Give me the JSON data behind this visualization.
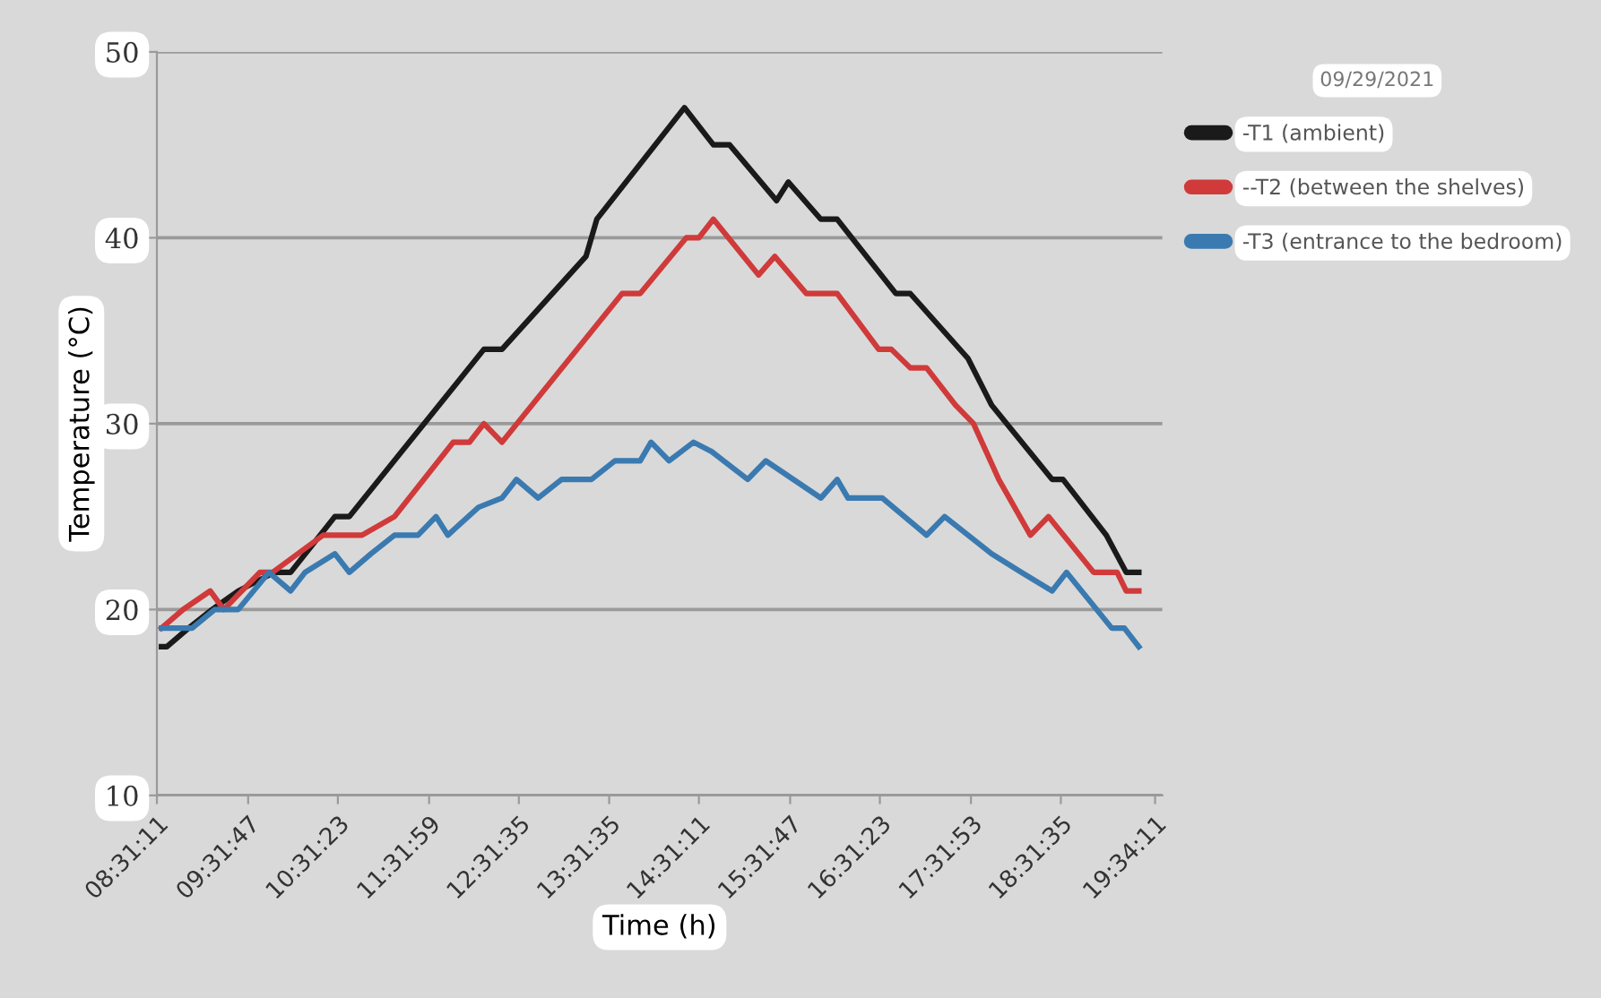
{
  "chart_data": {
    "type": "line",
    "xlabel": "Time (h)",
    "ylabel": "Temperature (°C)",
    "legend_title": "09/29/2021",
    "xlim": [
      8.5197,
      19.65
    ],
    "ylim": [
      10,
      50
    ],
    "yticks": [
      10,
      20,
      30,
      40,
      50
    ],
    "xticks": [
      {
        "value": 8.5197,
        "label": "08:31:11"
      },
      {
        "value": 9.5297,
        "label": "09:31:47"
      },
      {
        "value": 10.5231,
        "label": "10:31:23"
      },
      {
        "value": 11.5331,
        "label": "11:31:59"
      },
      {
        "value": 12.5264,
        "label": "12:31:35"
      },
      {
        "value": 13.5264,
        "label": "13:31:35"
      },
      {
        "value": 14.5197,
        "label": "14:31:11"
      },
      {
        "value": 15.5297,
        "label": "15:31:47"
      },
      {
        "value": 16.5231,
        "label": "16:31:23"
      },
      {
        "value": 17.5314,
        "label": "17:31:53"
      },
      {
        "value": 18.5264,
        "label": "18:31:35"
      },
      {
        "value": 19.5697,
        "label": "19:34:11"
      }
    ],
    "grid": "y",
    "legend": "right",
    "marker": "none",
    "line_style": "solid",
    "series": [
      {
        "name": "-T1 (ambient)",
        "color": "#1a1a1a",
        "x": [
          8.57,
          8.63,
          8.87,
          9.13,
          9.42,
          9.82,
          10.0,
          10.49,
          10.65,
          12.14,
          12.34,
          13.27,
          13.39,
          14.36,
          14.68,
          14.86,
          15.38,
          15.51,
          15.87,
          16.05,
          16.7,
          16.86,
          17.5,
          17.76,
          18.43,
          18.55,
          19.03,
          19.25,
          19.39
        ],
        "values": [
          18,
          18,
          19,
          20,
          21,
          22,
          22,
          25,
          25,
          34,
          34,
          39,
          41,
          47,
          45,
          45,
          42,
          43,
          41,
          41,
          37,
          37,
          33.5,
          31,
          27,
          27,
          24,
          22,
          22
        ]
      },
      {
        "name": "--T2 (between the shelves)",
        "color": "#d03a3a",
        "x": [
          8.57,
          8.81,
          9.11,
          9.26,
          9.66,
          9.8,
          10.36,
          10.79,
          11.15,
          11.8,
          11.98,
          12.14,
          12.34,
          13.67,
          13.87,
          14.38,
          14.52,
          14.68,
          15.18,
          15.36,
          15.71,
          16.05,
          16.51,
          16.65,
          16.86,
          17.04,
          17.36,
          17.56,
          17.84,
          18.19,
          18.39,
          18.89,
          19.15,
          19.25,
          19.39
        ],
        "values": [
          19,
          20,
          21,
          20,
          22,
          22,
          24,
          24,
          25,
          29,
          29,
          30,
          29,
          37,
          37,
          40,
          40,
          41,
          38,
          39,
          37,
          37,
          34,
          34,
          33,
          33,
          31,
          30,
          27,
          24,
          25,
          22,
          22,
          21,
          21
        ]
      },
      {
        "name": "-T3 (entrance to the bedroom)",
        "color": "#3a7ab0",
        "x": [
          8.57,
          8.63,
          8.91,
          9.16,
          9.42,
          9.76,
          10.0,
          10.16,
          10.49,
          10.65,
          10.89,
          11.15,
          11.41,
          11.61,
          11.74,
          12.08,
          12.34,
          12.5,
          12.74,
          13.0,
          13.33,
          13.59,
          13.87,
          13.99,
          14.19,
          14.46,
          14.66,
          15.06,
          15.26,
          15.87,
          16.05,
          16.17,
          16.55,
          17.04,
          17.24,
          17.76,
          18.09,
          18.43,
          18.59,
          19.09,
          19.23,
          19.39
        ],
        "values": [
          19,
          19,
          19,
          20,
          20,
          22,
          21,
          22,
          23,
          22,
          23,
          24,
          24,
          25,
          24,
          25.5,
          26,
          27,
          26,
          27,
          27,
          28,
          28,
          29,
          28,
          29,
          28.5,
          27,
          28,
          26,
          27,
          26,
          26,
          24,
          25,
          23,
          22,
          21,
          22,
          19,
          19,
          18
        ]
      }
    ]
  }
}
